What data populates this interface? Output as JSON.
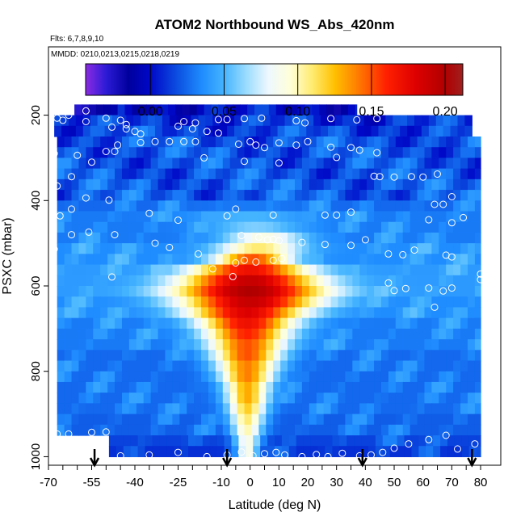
{
  "chart_data": {
    "type": "heatmap",
    "title": "ATOM2 Northbound WS_Abs_420nm",
    "flights_note": "Flts: 6,7,8,9,10",
    "dates_note": "MMDD: 0210,0213,0215,0218,0219",
    "xlabel": "Latitude (deg N)",
    "ylabel": "PSXC (mbar)",
    "xlim": [
      -70,
      87
    ],
    "ylim": [
      1020,
      40
    ],
    "y_reversed": true,
    "x_ticks": [
      -70,
      -55,
      -40,
      -25,
      -10,
      0,
      10,
      20,
      30,
      40,
      50,
      60,
      70,
      80
    ],
    "y_ticks": [
      200,
      400,
      600,
      800,
      1000
    ],
    "colorbar": {
      "ticks": [
        "0.00",
        "0.05",
        "0.10",
        "0.15",
        "0.20"
      ],
      "tick_values": [
        0,
        0.05,
        0.1,
        0.15,
        0.2
      ],
      "range": [
        -0.044,
        0.212
      ],
      "palette": [
        [
          -0.044,
          "#8a2be2"
        ],
        [
          -0.03,
          "#2c1bd6"
        ],
        [
          -0.015,
          "#00009c"
        ],
        [
          0.0,
          "#0008c8"
        ],
        [
          0.018,
          "#0b4ee0"
        ],
        [
          0.035,
          "#1f8cff"
        ],
        [
          0.05,
          "#45b4ff"
        ],
        [
          0.065,
          "#9adcff"
        ],
        [
          0.08,
          "#eef8ff"
        ],
        [
          0.095,
          "#ffffd8"
        ],
        [
          0.11,
          "#ffeb70"
        ],
        [
          0.125,
          "#ffc000"
        ],
        [
          0.14,
          "#ff8000"
        ],
        [
          0.16,
          "#ff2000"
        ],
        [
          0.18,
          "#dd0000"
        ],
        [
          0.2,
          "#b00000"
        ],
        [
          0.212,
          "#a02020"
        ]
      ]
    },
    "grid": false,
    "flight_start_arrows_lat": [
      -54,
      -8,
      39,
      77
    ],
    "cell_height_mbar": 25,
    "layers": [
      {
        "p": 187.5,
        "lat_range": [
          -61,
          37
        ],
        "base": 0.0
      },
      {
        "p": 212.5,
        "lat_range": [
          -68,
          77
        ],
        "base": 0.01
      },
      {
        "p": 237.5,
        "lat_range": [
          -68,
          77
        ],
        "base": 0.015
      },
      {
        "p": 262.5,
        "lat_range": [
          -67,
          80
        ],
        "base": 0.02
      },
      {
        "p": 287.5,
        "lat_range": [
          -67,
          80
        ],
        "base": 0.02
      },
      {
        "p": 312.5,
        "lat_range": [
          -67,
          80
        ],
        "base": 0.02
      },
      {
        "p": 337.5,
        "lat_range": [
          -67,
          80
        ],
        "base": 0.02
      },
      {
        "p": 362.5,
        "lat_range": [
          -67,
          80
        ],
        "base": 0.022
      },
      {
        "p": 387.5,
        "lat_range": [
          -67,
          80
        ],
        "base": 0.022
      },
      {
        "p": 412.5,
        "lat_range": [
          -67,
          80
        ],
        "base": 0.025,
        "peak": {
          "lat": 0,
          "v": 0.03,
          "hw": 30
        }
      },
      {
        "p": 437.5,
        "lat_range": [
          -67,
          80
        ],
        "base": 0.03,
        "peak": {
          "lat": 0,
          "v": 0.05,
          "hw": 30
        }
      },
      {
        "p": 462.5,
        "lat_range": [
          -67,
          80
        ],
        "base": 0.03,
        "peak": {
          "lat": 2,
          "v": 0.06,
          "hw": 25
        }
      },
      {
        "p": 487.5,
        "lat_range": [
          -67,
          80
        ],
        "base": 0.03,
        "peak": {
          "lat": 5,
          "v": 0.09,
          "hw": 22
        }
      },
      {
        "p": 512.5,
        "lat_range": [
          -67,
          80
        ],
        "base": 0.035,
        "peak": {
          "lat": 3,
          "v": 0.11,
          "hw": 22
        }
      },
      {
        "p": 537.5,
        "lat_range": [
          -67,
          80
        ],
        "base": 0.035,
        "peak": {
          "lat": 1,
          "v": 0.15,
          "hw": 20
        }
      },
      {
        "p": 562.5,
        "lat_range": [
          -67,
          80
        ],
        "base": 0.04,
        "peak": {
          "lat": 0,
          "v": 0.17,
          "hw": 30
        }
      },
      {
        "p": 587.5,
        "lat_range": [
          -67,
          80
        ],
        "base": 0.04,
        "peak": {
          "lat": 0,
          "v": 0.19,
          "hw": 35
        }
      },
      {
        "p": 612.5,
        "lat_range": [
          -67,
          80
        ],
        "base": 0.04,
        "peak": {
          "lat": 0,
          "v": 0.2,
          "hw": 38
        }
      },
      {
        "p": 637.5,
        "lat_range": [
          -67,
          80
        ],
        "base": 0.035,
        "peak": {
          "lat": 0,
          "v": 0.19,
          "hw": 35
        }
      },
      {
        "p": 662.5,
        "lat_range": [
          -67,
          80
        ],
        "base": 0.035,
        "peak": {
          "lat": -1,
          "v": 0.18,
          "hw": 30
        }
      },
      {
        "p": 687.5,
        "lat_range": [
          -67,
          80
        ],
        "base": 0.03,
        "peak": {
          "lat": -1,
          "v": 0.17,
          "hw": 25
        }
      },
      {
        "p": 712.5,
        "lat_range": [
          -67,
          80
        ],
        "base": 0.03,
        "peak": {
          "lat": -1,
          "v": 0.16,
          "hw": 22
        }
      },
      {
        "p": 737.5,
        "lat_range": [
          -67,
          80
        ],
        "base": 0.03,
        "peak": {
          "lat": -1,
          "v": 0.15,
          "hw": 20
        }
      },
      {
        "p": 762.5,
        "lat_range": [
          -67,
          80
        ],
        "base": 0.025,
        "peak": {
          "lat": -1,
          "v": 0.15,
          "hw": 18
        }
      },
      {
        "p": 787.5,
        "lat_range": [
          -67,
          80
        ],
        "base": 0.025,
        "peak": {
          "lat": -1,
          "v": 0.14,
          "hw": 16
        }
      },
      {
        "p": 812.5,
        "lat_range": [
          -67,
          80
        ],
        "base": 0.025,
        "peak": {
          "lat": -1,
          "v": 0.14,
          "hw": 14
        }
      },
      {
        "p": 837.5,
        "lat_range": [
          -67,
          80
        ],
        "base": 0.025,
        "peak": {
          "lat": -1,
          "v": 0.13,
          "hw": 12
        }
      },
      {
        "p": 862.5,
        "lat_range": [
          -67,
          80
        ],
        "base": 0.025,
        "peak": {
          "lat": -1,
          "v": 0.13,
          "hw": 11
        }
      },
      {
        "p": 887.5,
        "lat_range": [
          -67,
          80
        ],
        "base": 0.025,
        "peak": {
          "lat": -1,
          "v": 0.12,
          "hw": 10
        }
      },
      {
        "p": 912.5,
        "lat_range": [
          -67,
          80
        ],
        "base": 0.022,
        "peak": {
          "lat": -1,
          "v": 0.11,
          "hw": 9
        }
      },
      {
        "p": 937.5,
        "lat_range": [
          -67,
          80
        ],
        "base": 0.022,
        "peak": {
          "lat": -1,
          "v": 0.1,
          "hw": 8
        }
      },
      {
        "p": 962.5,
        "lat_range": [
          -49,
          80
        ],
        "base": 0.015,
        "peak": {
          "lat": -1,
          "v": 0.09,
          "hw": 7
        }
      },
      {
        "p": 987.5,
        "lat_range": [
          -49,
          80
        ],
        "base": 0.01,
        "peak": {
          "lat": -1,
          "v": 0.09,
          "hw": 6
        }
      }
    ],
    "points": [
      [
        -57,
        190
      ],
      [
        -63,
        200
      ],
      [
        -57,
        215
      ],
      [
        -50,
        207
      ],
      [
        -45,
        212
      ],
      [
        -43,
        222
      ],
      [
        -67,
        207
      ],
      [
        -65,
        212
      ],
      [
        -23,
        215
      ],
      [
        -19,
        218
      ],
      [
        -11,
        210
      ],
      [
        -8,
        210
      ],
      [
        -2,
        208
      ],
      [
        4,
        207
      ],
      [
        16,
        213
      ],
      [
        19,
        218
      ],
      [
        28,
        208
      ],
      [
        37,
        211
      ],
      [
        44,
        208
      ],
      [
        -48,
        228
      ],
      [
        -43,
        232
      ],
      [
        -40,
        238
      ],
      [
        -38,
        244
      ],
      [
        -25,
        226
      ],
      [
        -20,
        232
      ],
      [
        -15,
        238
      ],
      [
        -11,
        242
      ],
      [
        -46,
        270
      ],
      [
        -38,
        264
      ],
      [
        -33,
        262
      ],
      [
        -28,
        262
      ],
      [
        -23,
        262
      ],
      [
        -19,
        262
      ],
      [
        -50,
        285
      ],
      [
        -47,
        285
      ],
      [
        -4,
        268
      ],
      [
        0,
        262
      ],
      [
        2,
        270
      ],
      [
        5,
        276
      ],
      [
        10,
        265
      ],
      [
        16,
        270
      ],
      [
        20,
        262
      ],
      [
        28,
        275
      ],
      [
        35,
        276
      ],
      [
        38,
        282
      ],
      [
        44,
        288
      ],
      [
        -68,
        290
      ],
      [
        -60,
        294
      ],
      [
        -55,
        310
      ],
      [
        -62,
        344
      ],
      [
        -67,
        366
      ],
      [
        30,
        299
      ],
      [
        -16,
        300
      ],
      [
        -2,
        308
      ],
      [
        10,
        312
      ],
      [
        43,
        343
      ],
      [
        45,
        344
      ],
      [
        50,
        345
      ],
      [
        56,
        344
      ],
      [
        60,
        345
      ],
      [
        65,
        338
      ],
      [
        -62,
        420
      ],
      [
        -66,
        436
      ],
      [
        -57,
        394
      ],
      [
        -49,
        399
      ],
      [
        -35,
        430
      ],
      [
        -25,
        446
      ],
      [
        -5,
        420
      ],
      [
        -8,
        436
      ],
      [
        8,
        434
      ],
      [
        26,
        434
      ],
      [
        30,
        434
      ],
      [
        35,
        427
      ],
      [
        70,
        391
      ],
      [
        67,
        409
      ],
      [
        64,
        409
      ],
      [
        74,
        440
      ],
      [
        70,
        452
      ],
      [
        62,
        445
      ],
      [
        -56,
        474
      ],
      [
        -62,
        480
      ],
      [
        -47,
        480
      ],
      [
        -33,
        500
      ],
      [
        -28,
        510
      ],
      [
        -3,
        482
      ],
      [
        3,
        486
      ],
      [
        6,
        492
      ],
      [
        8,
        491
      ],
      [
        10,
        494
      ],
      [
        18,
        498
      ],
      [
        26,
        503
      ],
      [
        35,
        505
      ],
      [
        40,
        492
      ],
      [
        48,
        525
      ],
      [
        53,
        527
      ],
      [
        57,
        516
      ],
      [
        68,
        528
      ],
      [
        70,
        532
      ],
      [
        -68,
        514
      ],
      [
        -18,
        525
      ],
      [
        -5,
        546
      ],
      [
        -2,
        540
      ],
      [
        2,
        544
      ],
      [
        8,
        540
      ],
      [
        11,
        536
      ],
      [
        -48,
        579
      ],
      [
        -13,
        560
      ],
      [
        -6,
        578
      ],
      [
        48,
        593
      ],
      [
        50,
        611
      ],
      [
        54,
        606
      ],
      [
        62,
        605
      ],
      [
        64,
        650
      ],
      [
        67,
        612
      ],
      [
        70,
        605
      ],
      [
        80,
        572
      ],
      [
        80,
        585
      ],
      [
        -67,
        947
      ],
      [
        -63,
        947
      ],
      [
        -55,
        943
      ],
      [
        -50,
        942
      ],
      [
        -45,
        998
      ],
      [
        -35,
        996
      ],
      [
        -25,
        990
      ],
      [
        -15,
        1000
      ],
      [
        -8,
        996
      ],
      [
        -3,
        989
      ],
      [
        1,
        998
      ],
      [
        5,
        993
      ],
      [
        9,
        990
      ],
      [
        12,
        996
      ],
      [
        18,
        1000
      ],
      [
        23,
        995
      ],
      [
        27,
        1000
      ],
      [
        32,
        992
      ],
      [
        38,
        998
      ],
      [
        42,
        996
      ],
      [
        46,
        990
      ],
      [
        50,
        980
      ],
      [
        55,
        970
      ],
      [
        62,
        960
      ],
      [
        68,
        950
      ],
      [
        72,
        982
      ],
      [
        78,
        970
      ]
    ]
  }
}
